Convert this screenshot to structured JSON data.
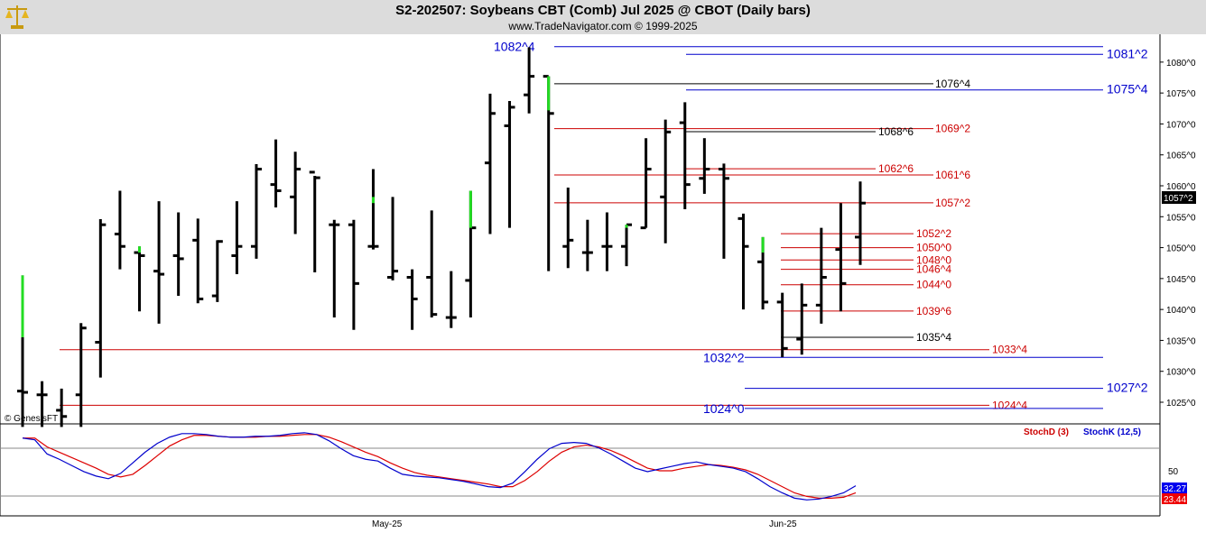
{
  "header": {
    "title": "S2-202507:  Soybeans CBT (Comb) Jul 2025 @ CBOT  (Daily bars)",
    "subtitle": "www.TradeNavigator.com © 1999-2025"
  },
  "copyright": "© GenesisFT",
  "current_price_label": "1057^2",
  "chart_data": {
    "type": "ohlc",
    "y_ticks": [
      "1025^0",
      "1030^0",
      "1035^0",
      "1040^0",
      "1045^0",
      "1050^0",
      "1055^0",
      "1060^0",
      "1065^0",
      "1070^0",
      "1075^0",
      "1080^0"
    ],
    "x_ticks": [
      "May-25",
      "Jun-25"
    ],
    "ylim": [
      1021.5,
      1084.5
    ],
    "bars": [
      {
        "o": 1026.8,
        "h": 1045.5,
        "l": 1021,
        "c": 1026.6
      },
      {
        "o": 1026.2,
        "h": 1028.4,
        "l": 1021,
        "c": 1026.2
      },
      {
        "o": 1023.7,
        "h": 1027.2,
        "l": 1021,
        "c": 1022.7
      },
      {
        "o": 1026.2,
        "h": 1037.8,
        "l": 1021,
        "c": 1037.0
      },
      {
        "o": 1034.7,
        "h": 1054.6,
        "l": 1029.0,
        "c": 1053.7
      },
      {
        "o": 1052.2,
        "h": 1059.2,
        "l": 1046.5,
        "c": 1050.2
      },
      {
        "o": 1049.2,
        "h": 1050.2,
        "l": 1039.7,
        "c": 1048.7
      },
      {
        "o": 1046.2,
        "h": 1057.5,
        "l": 1037.7,
        "c": 1045.7
      },
      {
        "o": 1048.7,
        "h": 1055.7,
        "l": 1042.2,
        "c": 1048.2
      },
      {
        "o": 1051.2,
        "h": 1054.7,
        "l": 1041.0,
        "c": 1041.7
      },
      {
        "o": 1042.2,
        "h": 1051.2,
        "l": 1041.2,
        "c": 1051.0
      },
      {
        "o": 1048.7,
        "h": 1057.5,
        "l": 1045.7,
        "c": 1050.2
      },
      {
        "o": 1050.2,
        "h": 1063.5,
        "l": 1048.2,
        "c": 1062.7
      },
      {
        "o": 1060.2,
        "h": 1067.5,
        "l": 1056.5,
        "c": 1059.2
      },
      {
        "o": 1058.2,
        "h": 1065.5,
        "l": 1052.2,
        "c": 1062.7
      },
      {
        "o": 1062.2,
        "h": 1061.6,
        "l": 1046.0,
        "c": 1061.3
      },
      {
        "o": 1053.7,
        "h": 1054.5,
        "l": 1038.7,
        "c": 1053.7
      },
      {
        "o": 1053.7,
        "h": 1054.5,
        "l": 1036.7,
        "c": 1044.2
      },
      {
        "o": 1050.2,
        "h": 1062.7,
        "l": 1049.7,
        "c": 1050.2
      },
      {
        "o": 1045.2,
        "h": 1058.2,
        "l": 1044.7,
        "c": 1046.2
      },
      {
        "o": 1045.2,
        "h": 1046.5,
        "l": 1036.7,
        "c": 1041.7
      },
      {
        "o": 1045.2,
        "h": 1056.0,
        "l": 1038.7,
        "c": 1039.2
      },
      {
        "o": 1038.7,
        "h": 1046.2,
        "l": 1037.0,
        "c": 1038.7
      },
      {
        "o": 1044.7,
        "h": 1059.2,
        "l": 1038.7,
        "c": 1053.2
      },
      {
        "o": 1063.7,
        "h": 1074.9,
        "l": 1052.2,
        "c": 1071.7
      },
      {
        "o": 1069.7,
        "h": 1073.7,
        "l": 1053.2,
        "c": 1072.7
      },
      {
        "o": 1074.7,
        "h": 1082.4,
        "l": 1071.7,
        "c": 1077.7
      },
      {
        "o": 1077.7,
        "h": 1077.7,
        "l": 1046.2,
        "c": 1071.7
      },
      {
        "o": 1050.2,
        "h": 1059.7,
        "l": 1046.7,
        "c": 1051.2
      },
      {
        "o": 1049.2,
        "h": 1054.5,
        "l": 1046.2,
        "c": 1049.2
      },
      {
        "o": 1050.2,
        "h": 1055.7,
        "l": 1046.2,
        "c": 1050.2
      },
      {
        "o": 1050.2,
        "h": 1053.7,
        "l": 1047.0,
        "c": 1053.7
      },
      {
        "o": 1053.2,
        "h": 1067.7,
        "l": 1053.2,
        "c": 1062.7
      },
      {
        "o": 1058.2,
        "h": 1070.7,
        "l": 1050.7,
        "c": 1068.7
      },
      {
        "o": 1070.2,
        "h": 1073.5,
        "l": 1056.2,
        "c": 1060.2
      },
      {
        "o": 1061.2,
        "h": 1067.7,
        "l": 1058.7,
        "c": 1062.7
      },
      {
        "o": 1062.7,
        "h": 1063.6,
        "l": 1048.2,
        "c": 1061.2
      },
      {
        "o": 1054.7,
        "h": 1055.5,
        "l": 1040.0,
        "c": 1050.2
      },
      {
        "o": 1047.7,
        "h": 1051.7,
        "l": 1040.0,
        "c": 1041.2
      },
      {
        "o": 1041.2,
        "h": 1042.7,
        "l": 1032.3,
        "c": 1033.7
      },
      {
        "o": 1035.2,
        "h": 1044.2,
        "l": 1032.7,
        "c": 1040.7
      },
      {
        "o": 1040.7,
        "h": 1053.2,
        "l": 1037.7,
        "c": 1045.2
      },
      {
        "o": 1049.7,
        "h": 1057.2,
        "l": 1039.7,
        "c": 1044.2
      },
      {
        "o": 1051.7,
        "h": 1060.7,
        "l": 1047.2,
        "c": 1057.2
      }
    ],
    "levels": [
      {
        "label": "1081^2",
        "value": 1081.25,
        "color": "#0000cc"
      },
      {
        "label": "1076^4",
        "value": 1076.5,
        "color": "#000000"
      },
      {
        "label": "1075^4",
        "value": 1075.5,
        "color": "#0000cc"
      },
      {
        "label": "1069^2",
        "value": 1069.25,
        "color": "#cc0000"
      },
      {
        "label": "1068^6",
        "value": 1068.75,
        "color": "#000000"
      },
      {
        "label": "1062^6",
        "value": 1062.75,
        "color": "#cc0000"
      },
      {
        "label": "1061^6",
        "value": 1061.75,
        "color": "#cc0000"
      },
      {
        "label": "1057^2",
        "value": 1057.25,
        "color": "#cc0000"
      },
      {
        "label": "1052^2",
        "value": 1052.25,
        "color": "#cc0000"
      },
      {
        "label": "1050^0",
        "value": 1050.0,
        "color": "#cc0000"
      },
      {
        "label": "1048^0",
        "value": 1048.0,
        "color": "#cc0000"
      },
      {
        "label": "1046^4",
        "value": 1046.5,
        "color": "#cc0000"
      },
      {
        "label": "1044^0",
        "value": 1044.0,
        "color": "#cc0000"
      },
      {
        "label": "1039^6",
        "value": 1039.75,
        "color": "#cc0000"
      },
      {
        "label": "1035^4",
        "value": 1035.5,
        "color": "#000000"
      },
      {
        "label": "1033^4",
        "value": 1033.5,
        "color": "#cc0000"
      },
      {
        "label": "1032^2",
        "value": 1032.25,
        "color": "#0000cc"
      },
      {
        "label": "1027^2",
        "value": 1027.25,
        "color": "#0000cc"
      },
      {
        "label": "1024^4",
        "value": 1024.5,
        "color": "#cc0000"
      },
      {
        "label": "1024^0",
        "value": 1024.0,
        "color": "#0000cc"
      },
      {
        "label": "1082^4",
        "value": 1082.5,
        "color": "#0000cc"
      }
    ],
    "stochastic": {
      "stochD_label": "StochD (3)",
      "stochK_label": "StochK (12,5)",
      "tick_50": "50",
      "stochK_value": "32.27",
      "stochD_value": "23.44",
      "ylim": [
        0,
        100
      ],
      "k": [
        86,
        84,
        68,
        62,
        55,
        48,
        43,
        40,
        46,
        58,
        70,
        80,
        87,
        91,
        91,
        90,
        88,
        87,
        87,
        88,
        88,
        89,
        91,
        92,
        90,
        83,
        74,
        66,
        62,
        60,
        52,
        45,
        43,
        42,
        41,
        39,
        37,
        34,
        31,
        30,
        35,
        48,
        62,
        74,
        80,
        81,
        80,
        75,
        68,
        60,
        52,
        48,
        51,
        54,
        57,
        59,
        56,
        54,
        52,
        48,
        40,
        31,
        24,
        18,
        16,
        17,
        20,
        24,
        32
      ],
      "d": [
        86,
        86,
        76,
        70,
        64,
        58,
        52,
        45,
        42,
        45,
        55,
        66,
        77,
        84,
        89,
        89,
        88,
        87,
        87,
        87,
        88,
        88,
        89,
        90,
        90,
        87,
        82,
        76,
        70,
        65,
        58,
        52,
        47,
        44,
        42,
        40,
        38,
        36,
        34,
        31,
        31,
        38,
        48,
        60,
        70,
        76,
        78,
        76,
        72,
        66,
        59,
        52,
        49,
        49,
        52,
        54,
        56,
        55,
        53,
        50,
        45,
        38,
        31,
        24,
        20,
        18,
        18,
        19,
        24
      ]
    }
  }
}
